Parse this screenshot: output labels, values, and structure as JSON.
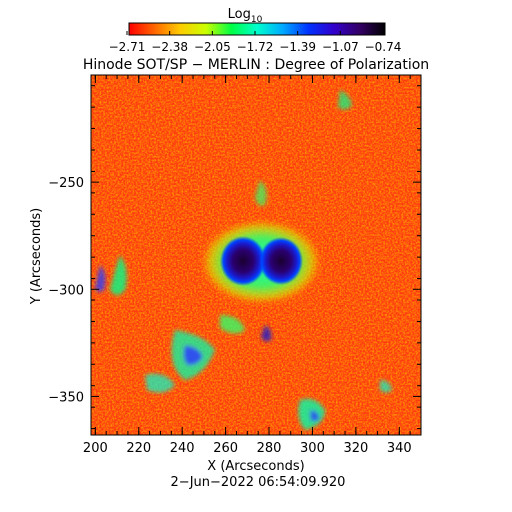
{
  "colorbar": {
    "title": "Log",
    "title_subscript": "10",
    "tick_labels": [
      "−2.71",
      "−2.38",
      "−2.05",
      "−1.72",
      "−1.39",
      "−1.07",
      "−0.74"
    ],
    "range": [
      -2.71,
      -0.74
    ],
    "colormap_stops": [
      "#ff0000",
      "#ff6600",
      "#ffcc00",
      "#ccff00",
      "#00ff44",
      "#00ffcc",
      "#00aaff",
      "#0033ff",
      "#3300cc",
      "#330066",
      "#000000"
    ]
  },
  "title": "Hinode SOT/SP − MERLIN : Degree of Polarization",
  "axes": {
    "xlabel": "X (Arcseconds)",
    "ylabel": "Y (Arcseconds)",
    "xlim": [
      198,
      350
    ],
    "ylim": [
      -368,
      -200
    ],
    "x_ticks": [
      "200",
      "220",
      "240",
      "260",
      "280",
      "300",
      "320",
      "340"
    ],
    "x_tick_values": [
      200,
      220,
      240,
      260,
      280,
      300,
      320,
      340
    ],
    "y_ticks": [
      "−250",
      "−300",
      "−350"
    ],
    "y_tick_values": [
      -250,
      -300,
      -350
    ]
  },
  "timestamp": "2−Jun−2022 06:54:09.920"
}
